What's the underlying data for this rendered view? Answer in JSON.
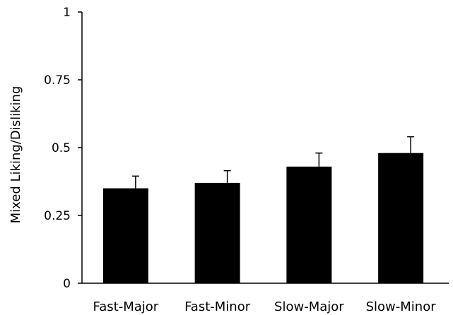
{
  "chart_data": {
    "type": "bar",
    "title": "",
    "xlabel": "",
    "ylabel": "Mixed Liking/Disliking",
    "ylim": [
      0,
      1
    ],
    "yticks": [
      {
        "value": 0,
        "label": "0"
      },
      {
        "value": 0.25,
        "label": "0.25"
      },
      {
        "value": 0.5,
        "label": "0.5"
      },
      {
        "value": 0.75,
        "label": "0.75"
      },
      {
        "value": 1,
        "label": "1"
      }
    ],
    "categories": [
      "Fast-Major",
      "Fast-Minor",
      "Slow-Major",
      "Slow-Minor"
    ],
    "values": [
      0.35,
      0.37,
      0.43,
      0.48
    ],
    "error_plus": [
      0.045,
      0.045,
      0.05,
      0.06
    ],
    "grid": false,
    "legend": "none",
    "bar_color": "#000000"
  }
}
